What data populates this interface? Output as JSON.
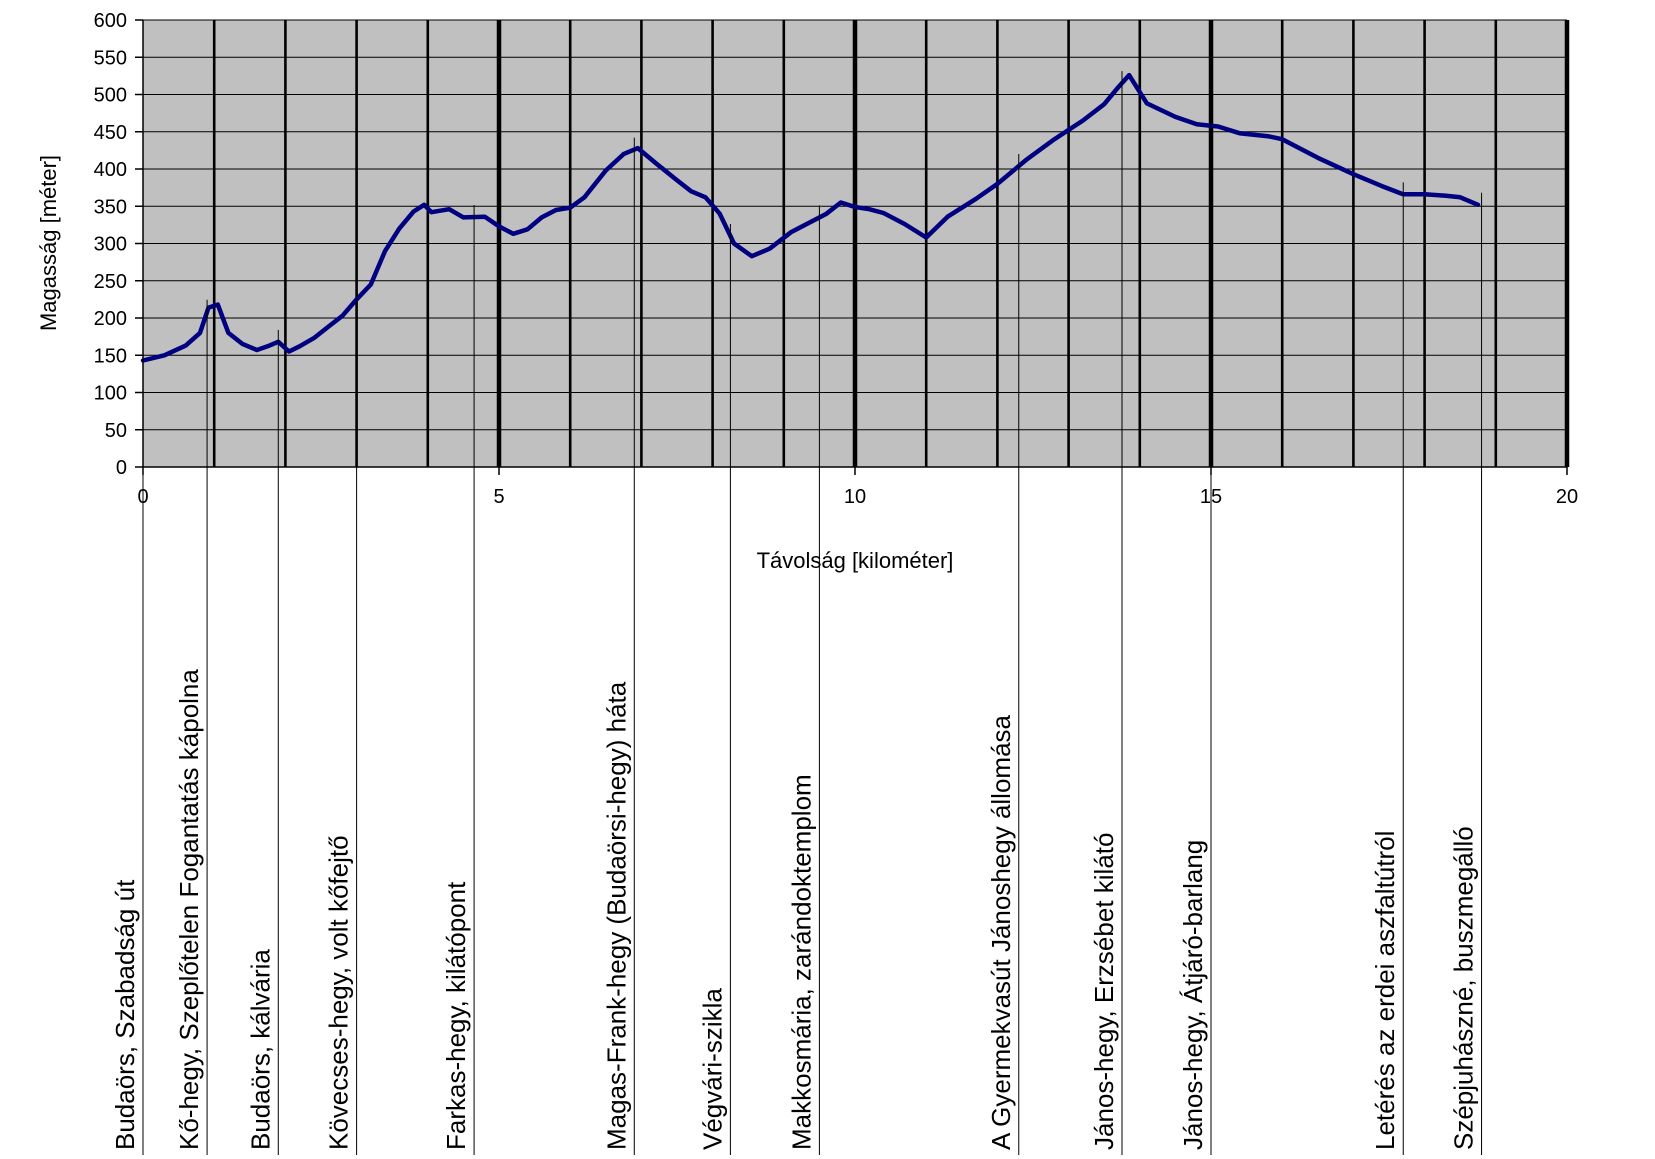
{
  "chart_data": {
    "type": "line",
    "xlabel": "Távolság [kilométer]",
    "ylabel": "Magasság [méter]",
    "xlim": [
      0,
      20
    ],
    "ylim": [
      0,
      600
    ],
    "x_ticks": [
      0,
      5,
      10,
      15,
      20
    ],
    "y_ticks": [
      0,
      50,
      100,
      150,
      200,
      250,
      300,
      350,
      400,
      450,
      500,
      550,
      600
    ],
    "grid": "horizontal gridlines every 50 m, vertical lines every 1 km (bold every 5 km)",
    "plot_background": "#c0c0c0",
    "line_color": "#000080",
    "series": [
      {
        "x": [
          0,
          0.3,
          0.6,
          0.8,
          0.92,
          1.05,
          1.2,
          1.4,
          1.6,
          1.75,
          1.9,
          2.05,
          2.2,
          2.4,
          2.6,
          2.8,
          3.0,
          3.2,
          3.4,
          3.6,
          3.8,
          3.95,
          4.05,
          4.3,
          4.5,
          4.8,
          5.0,
          5.2,
          5.4,
          5.6,
          5.8,
          6.0,
          6.2,
          6.5,
          6.75,
          6.95,
          7.2,
          7.5,
          7.7,
          7.9,
          8.1,
          8.3,
          8.55,
          8.8,
          9.1,
          9.4,
          9.6,
          9.8,
          10.0,
          10.2,
          10.4,
          10.7,
          11.0,
          11.3,
          11.7,
          12.0,
          12.4,
          12.8,
          13.2,
          13.5,
          13.7,
          13.85,
          14.1,
          14.5,
          14.8,
          15.1,
          15.4,
          15.8,
          16.0,
          16.5,
          17.0,
          17.4,
          17.7,
          18.0,
          18.3,
          18.5,
          18.75
        ],
        "y": [
          143,
          150,
          163,
          180,
          214,
          218,
          180,
          165,
          157,
          162,
          168,
          155,
          162,
          173,
          188,
          203,
          225,
          245,
          290,
          320,
          343,
          352,
          342,
          346,
          335,
          336,
          323,
          313,
          319,
          335,
          345,
          348,
          362,
          398,
          420,
          428,
          408,
          385,
          370,
          362,
          340,
          300,
          283,
          293,
          315,
          330,
          340,
          355,
          349,
          346,
          341,
          326,
          308,
          336,
          360,
          380,
          412,
          440,
          465,
          487,
          510,
          526,
          488,
          470,
          460,
          457,
          448,
          444,
          440,
          415,
          393,
          377,
          366,
          366,
          364,
          362,
          352
        ]
      }
    ],
    "landmarks": [
      {
        "x": 0.0,
        "label": "Budaörs, Szabadság út"
      },
      {
        "x": 0.9,
        "label": "Kő-hegy, Szeplőtelen Fogantatás kápolna"
      },
      {
        "x": 1.9,
        "label": "Budaörs, kálvária"
      },
      {
        "x": 3.0,
        "label": "Kövecses-hegy, volt kőfejtő"
      },
      {
        "x": 4.65,
        "label": "Farkas-hegy, kilátópont"
      },
      {
        "x": 6.9,
        "label": "Magas-Frank-hegy (Budaörsi-hegy) háta"
      },
      {
        "x": 8.25,
        "label": "Végvári-szikla"
      },
      {
        "x": 9.5,
        "label": "Makkosmária, zarándoktemplom"
      },
      {
        "x": 12.3,
        "label": "A Gyermekvasút Jánoshegy állomása"
      },
      {
        "x": 13.75,
        "label": "János-hegy, Erzsébet kilátó"
      },
      {
        "x": 15.0,
        "label": "János-hegy, Átjáró-barlang"
      },
      {
        "x": 17.7,
        "label": "Letérés az erdei aszfaltútról"
      },
      {
        "x": 18.8,
        "label": "Szépjuhászné, buszmegálló"
      }
    ]
  }
}
